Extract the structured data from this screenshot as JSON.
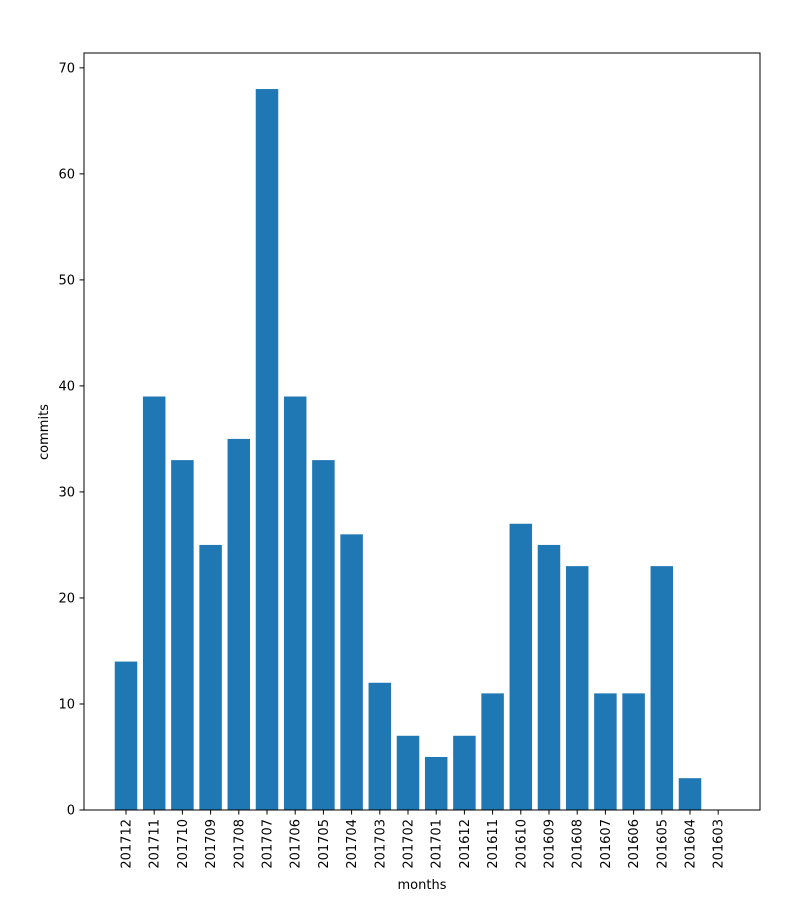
{
  "chart_data": {
    "type": "bar",
    "title": "",
    "xlabel": "months",
    "ylabel": "commits",
    "categories": [
      "201712",
      "201711",
      "201710",
      "201709",
      "201708",
      "201707",
      "201706",
      "201705",
      "201704",
      "201703",
      "201702",
      "201701",
      "201612",
      "201611",
      "201610",
      "201609",
      "201608",
      "201607",
      "201606",
      "201605",
      "201604",
      "201603"
    ],
    "values": [
      14,
      39,
      33,
      25,
      35,
      68,
      39,
      33,
      26,
      12,
      7,
      5,
      7,
      11,
      27,
      25,
      23,
      11,
      11,
      23,
      3,
      0
    ],
    "ylim": [
      0,
      71.4
    ],
    "yticks": [
      0,
      10,
      20,
      30,
      40,
      50,
      60,
      70
    ],
    "grid": false,
    "bar_color": "#1f77b4",
    "x_tick_rotation": "vertical"
  }
}
